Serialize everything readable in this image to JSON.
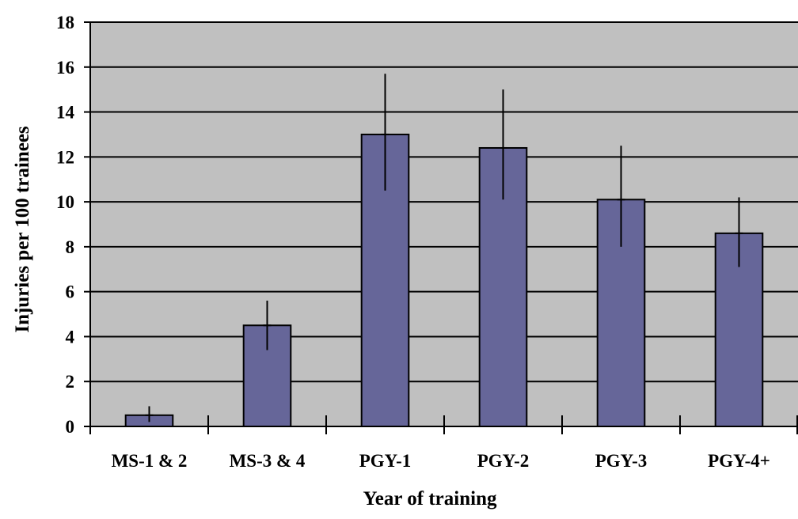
{
  "chart_data": {
    "type": "bar",
    "title": "",
    "xlabel": "Year of training",
    "ylabel": "Injuries per 100 trainees",
    "categories": [
      "MS-1 & 2",
      "MS-3 & 4",
      "PGY-1",
      "PGY-2",
      "PGY-3",
      "PGY-4+"
    ],
    "values": [
      0.5,
      4.5,
      13.0,
      12.4,
      10.1,
      8.6
    ],
    "error_low": [
      0.2,
      3.4,
      10.5,
      10.1,
      8.0,
      7.1
    ],
    "error_high": [
      0.9,
      5.6,
      15.7,
      15.0,
      12.5,
      10.2
    ],
    "ylim": [
      0,
      18
    ],
    "yticks": [
      0,
      2,
      4,
      6,
      8,
      10,
      12,
      14,
      16,
      18
    ],
    "ytick_labels": [
      "0",
      "2",
      "4",
      "6",
      "8",
      "10",
      "12",
      "14",
      "16",
      "18"
    ],
    "grid": true,
    "legend": "none",
    "colors": {
      "bar_fill": "#666699",
      "plot_background": "#c0c0c0",
      "gridline": "#000000",
      "bar_stroke": "#000000"
    }
  }
}
